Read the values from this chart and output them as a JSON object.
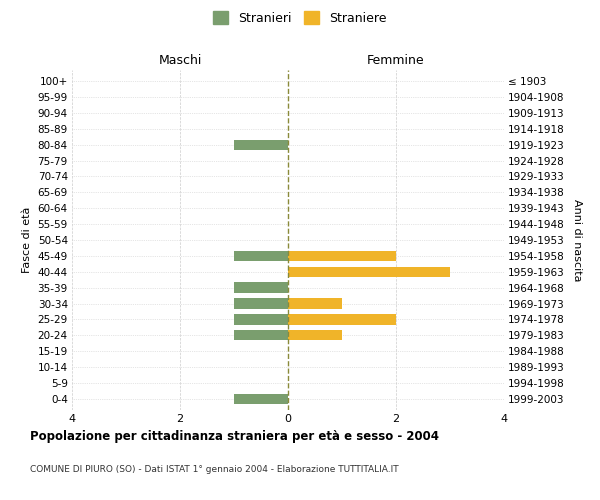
{
  "age_groups": [
    "100+",
    "95-99",
    "90-94",
    "85-89",
    "80-84",
    "75-79",
    "70-74",
    "65-69",
    "60-64",
    "55-59",
    "50-54",
    "45-49",
    "40-44",
    "35-39",
    "30-34",
    "25-29",
    "20-24",
    "15-19",
    "10-14",
    "5-9",
    "0-4"
  ],
  "birth_years": [
    "≤ 1903",
    "1904-1908",
    "1909-1913",
    "1914-1918",
    "1919-1923",
    "1924-1928",
    "1929-1933",
    "1934-1938",
    "1939-1943",
    "1944-1948",
    "1949-1953",
    "1954-1958",
    "1959-1963",
    "1964-1968",
    "1969-1973",
    "1974-1978",
    "1979-1983",
    "1984-1988",
    "1989-1993",
    "1994-1998",
    "1999-2003"
  ],
  "maschi": [
    0,
    0,
    0,
    0,
    1,
    0,
    0,
    0,
    0,
    0,
    0,
    1,
    0,
    1,
    1,
    1,
    1,
    0,
    0,
    0,
    1
  ],
  "femmine": [
    0,
    0,
    0,
    0,
    0,
    0,
    0,
    0,
    0,
    0,
    0,
    2,
    3,
    0,
    1,
    2,
    1,
    0,
    0,
    0,
    0
  ],
  "male_color": "#7a9e6e",
  "female_color": "#f0b429",
  "grid_color": "#cccccc",
  "center_line_color": "#8a8a3a",
  "xlim": 4,
  "xlabel_left": "Maschi",
  "xlabel_right": "Femmine",
  "ylabel_left": "Fasce di età",
  "ylabel_right": "Anni di nascita",
  "legend_male": "Stranieri",
  "legend_female": "Straniere",
  "title": "Popolazione per cittadinanza straniera per età e sesso - 2004",
  "subtitle": "COMUNE DI PIURO (SO) - Dati ISTAT 1° gennaio 2004 - Elaborazione TUTTITALIA.IT",
  "background_color": "#ffffff"
}
